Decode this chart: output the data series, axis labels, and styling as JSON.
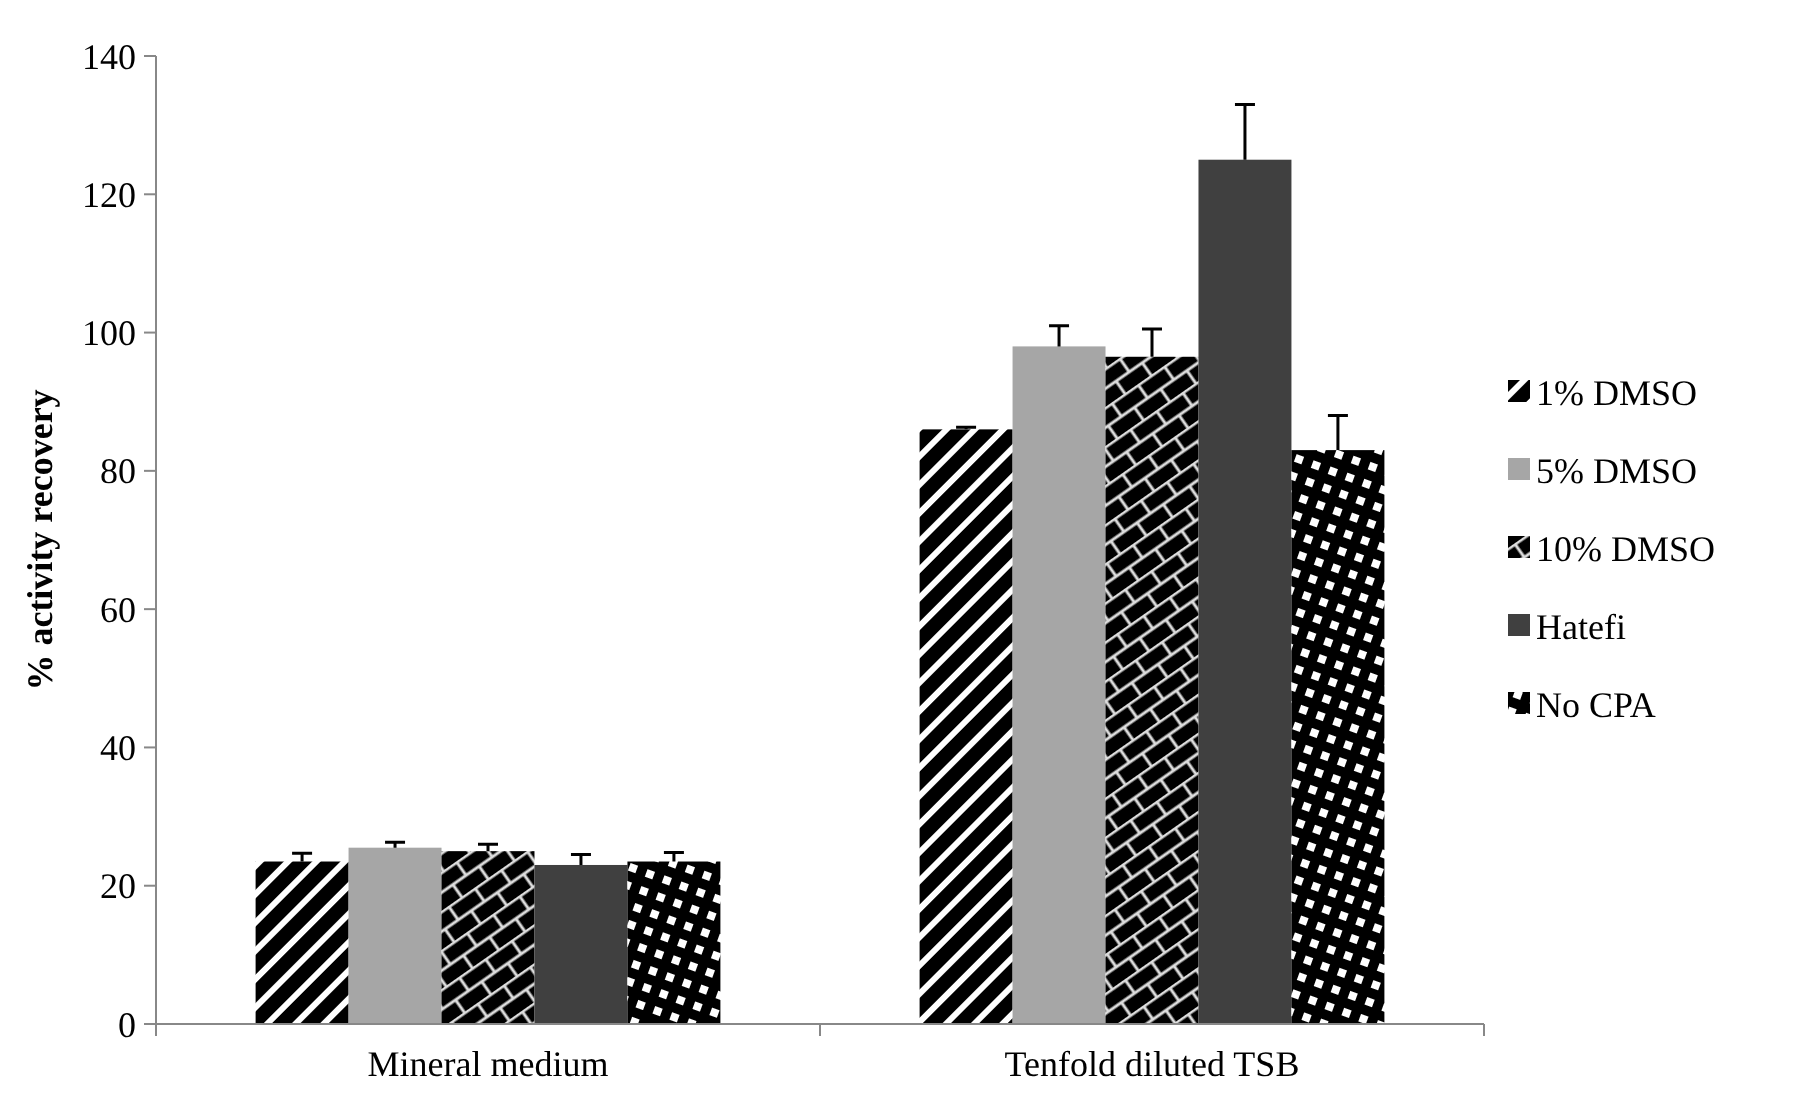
{
  "chart_data": {
    "type": "bar",
    "ylabel": "% activity recovery",
    "categories": [
      "Mineral medium",
      "Tenfold diluted TSB"
    ],
    "series": [
      {
        "name": "1% DMSO",
        "color": "#000000",
        "values": [
          23.5,
          86
        ],
        "errors": [
          1.2,
          0.3
        ]
      },
      {
        "name": "5% DMSO",
        "color": "#a6a6a6",
        "values": [
          25.5,
          98
        ],
        "errors": [
          0.8,
          3
        ]
      },
      {
        "name": "10% DMSO",
        "color": "#000000",
        "values": [
          25,
          96.5
        ],
        "errors": [
          1,
          4
        ]
      },
      {
        "name": "Hatefi",
        "color": "#404040",
        "values": [
          23,
          125
        ],
        "errors": [
          1.5,
          8
        ]
      },
      {
        "name": "No CPA",
        "color": "#000000",
        "values": [
          23.5,
          83
        ],
        "errors": [
          1.3,
          5
        ]
      }
    ],
    "ylim": [
      0,
      140
    ],
    "yticks": [
      0,
      20,
      40,
      60,
      80,
      100,
      120,
      140
    ],
    "grid": false,
    "legend": "right"
  }
}
